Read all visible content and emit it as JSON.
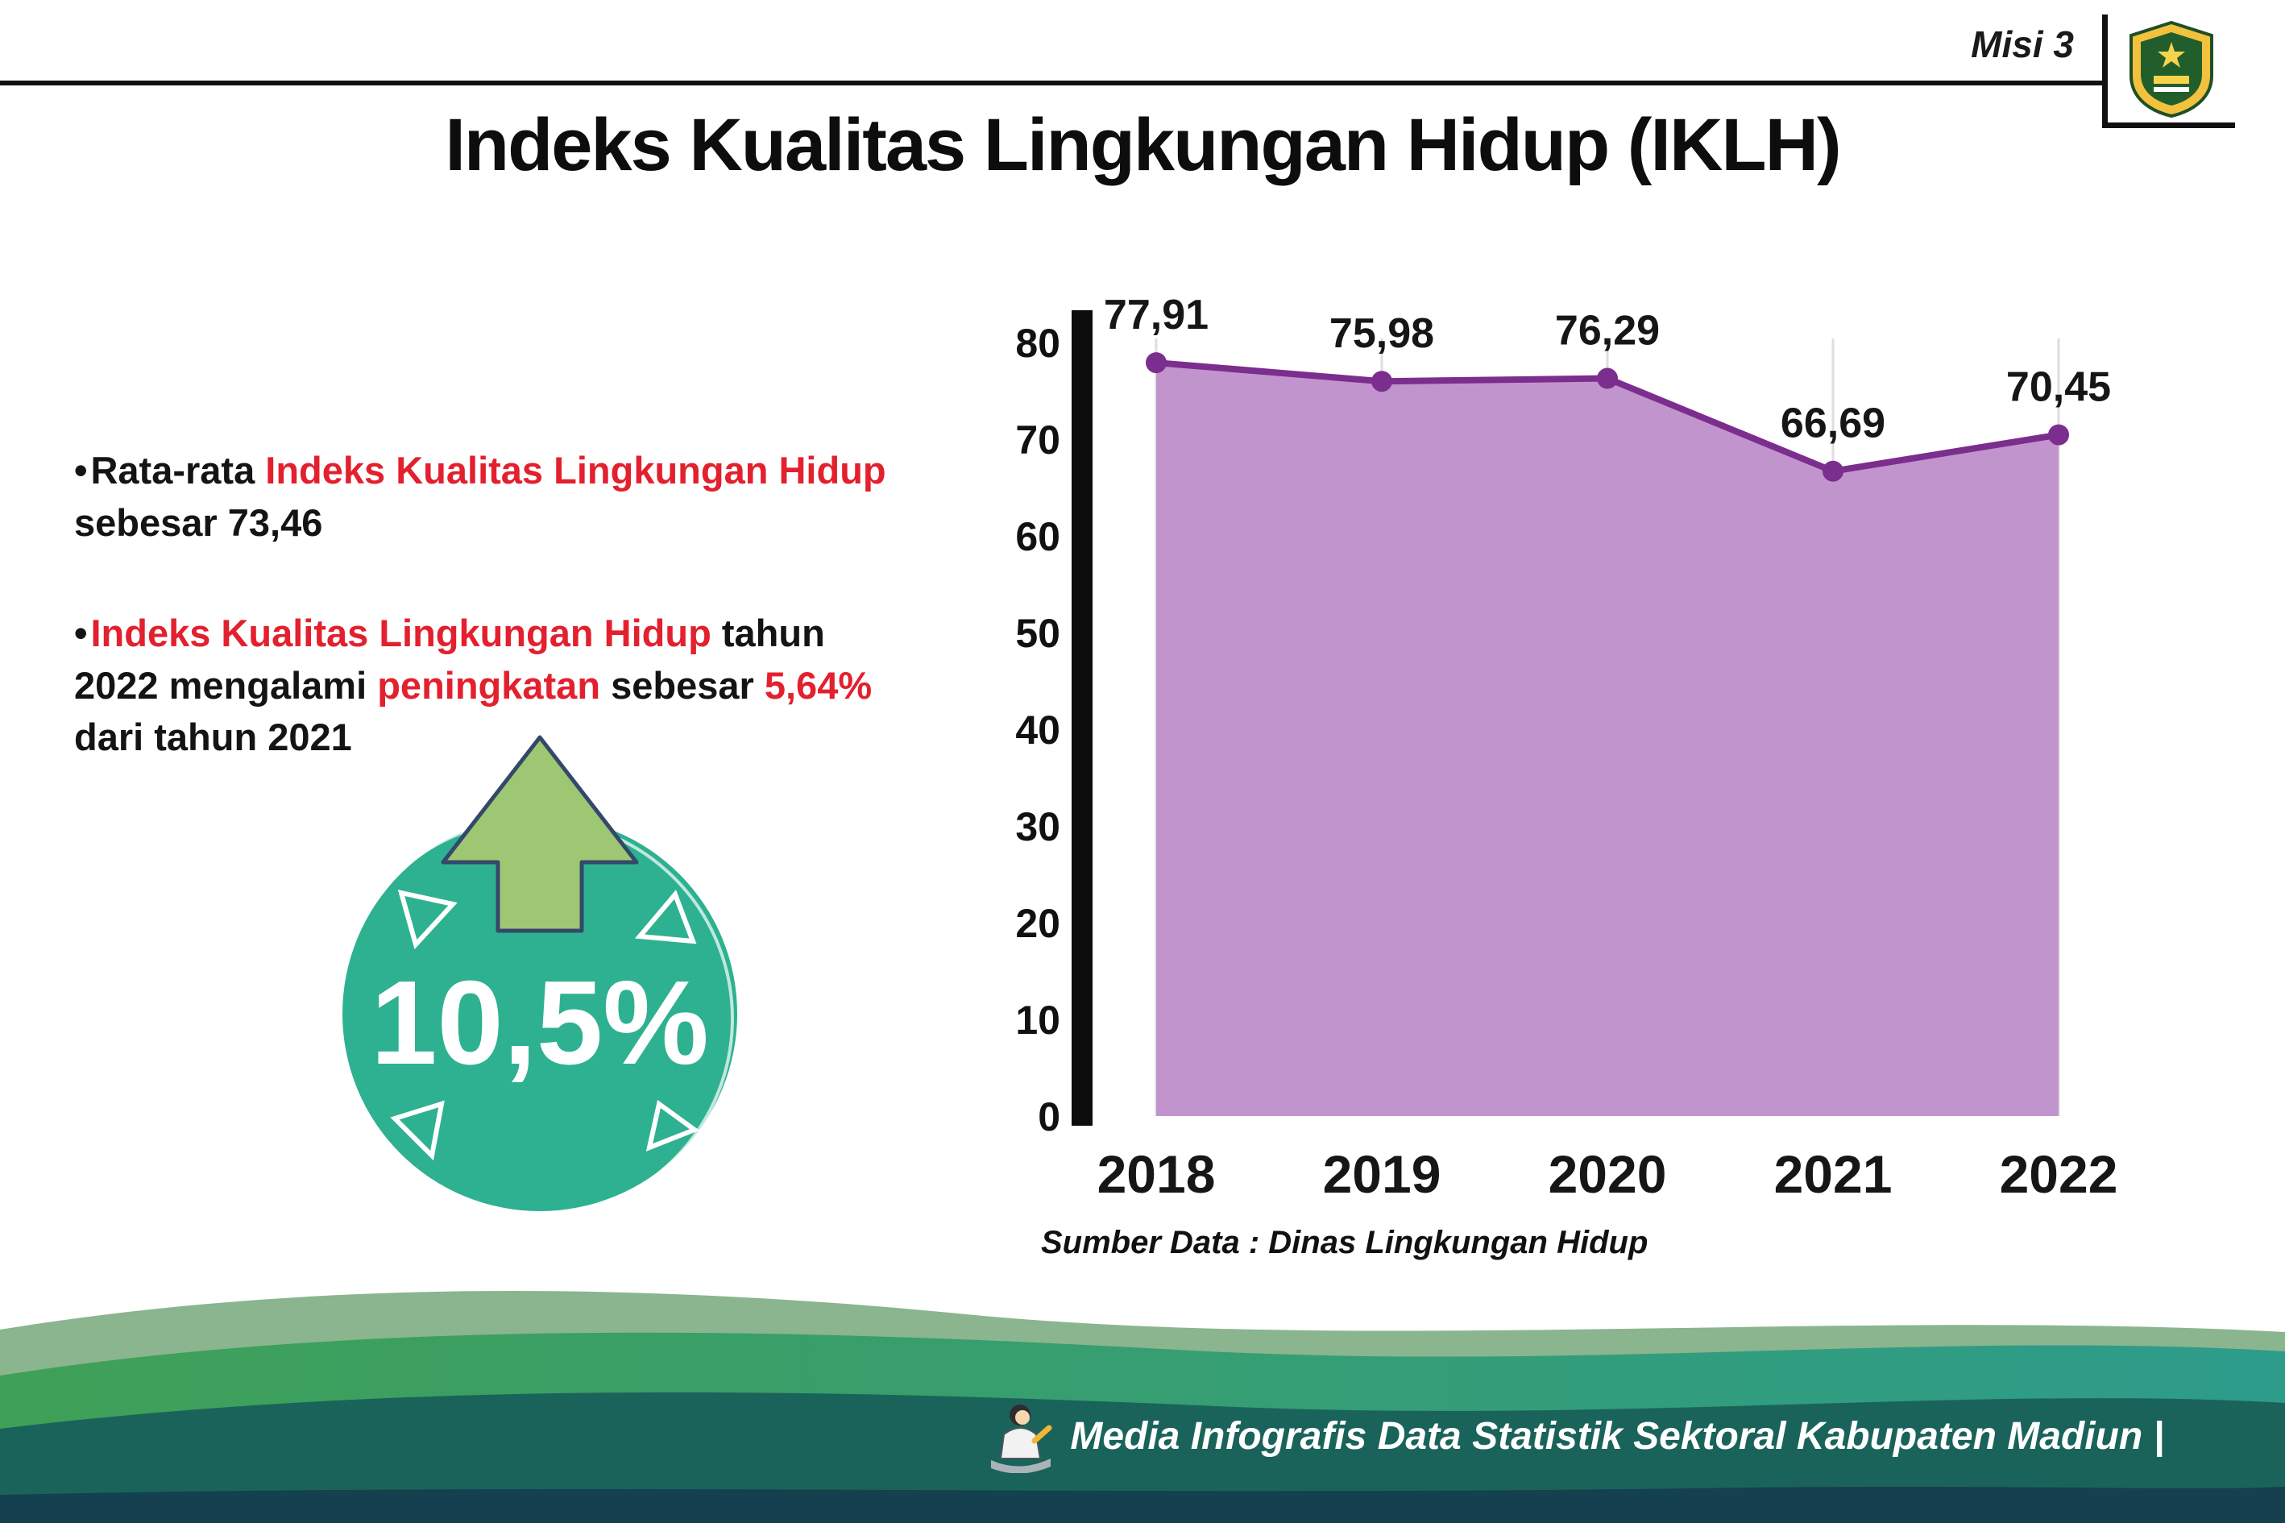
{
  "header": {
    "misi_label": "Misi 3",
    "title": "Indeks Kualitas Lingkungan Hidup (IKLH)",
    "logo_name": "Kabupaten Madiun"
  },
  "bullets": {
    "marker": "•",
    "b1": {
      "pre": "Rata-rata ",
      "red": "Indeks Kualitas Lingkungan Hidup",
      "post": " sebesar 73,46"
    },
    "b2": {
      "red1": "Indeks Kualitas Lingkungan Hidup",
      "t1": " tahun 2022 mengalami ",
      "red2": "peningkatan",
      "t2": " sebesar ",
      "red3": "5,64%",
      "t3": " dari tahun 2021"
    }
  },
  "badge": {
    "value": "10,5%"
  },
  "chart_data": {
    "type": "area",
    "title": "Indeks Kualitas Lingkungan Hidup (IKLH)",
    "categories": [
      "2018",
      "2019",
      "2020",
      "2021",
      "2022"
    ],
    "values": [
      77.91,
      75.98,
      76.29,
      66.69,
      70.45
    ],
    "value_labels": [
      "77,91",
      "75,98",
      "76,29",
      "66,69",
      "70,45"
    ],
    "xlabel": "",
    "ylabel": "",
    "ylim": [
      0,
      80
    ],
    "yticks": [
      0,
      10,
      20,
      30,
      40,
      50,
      60,
      70,
      80
    ],
    "grid": "light vertical gridlines",
    "legend": "none",
    "area_color": "#c294cd",
    "line_color": "#7b2e8d",
    "source": "Sumber Data : Dinas Lingkungan Hidup"
  },
  "footer": {
    "credit": "Media Infografis Data Statistik Sektoral Kabupaten Madiun |"
  },
  "colors": {
    "accent_red": "#e3202e",
    "badge_teal": "#2eb190",
    "arrow_green": "#9dc772",
    "footer_green": "#3fa057",
    "footer_teal_dark": "#1a635a",
    "footer_bottom": "#15404f"
  }
}
